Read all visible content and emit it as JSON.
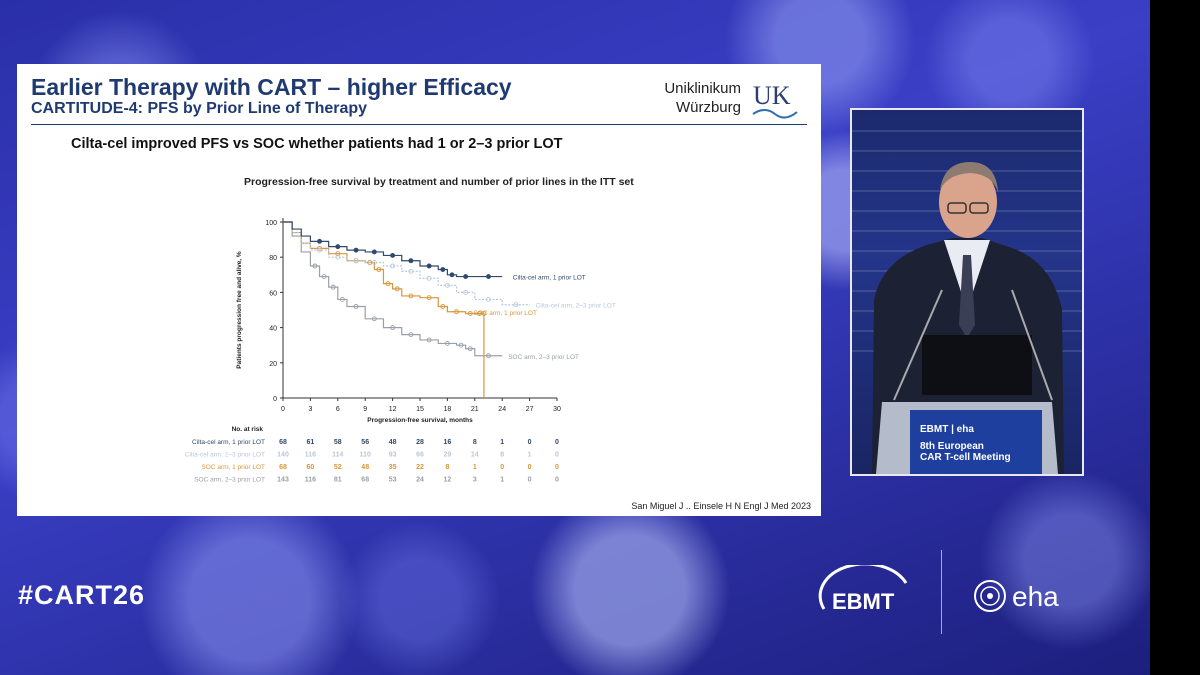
{
  "slide": {
    "title": "Earlier Therapy with CART – higher Efficacy",
    "subtitle": "CARTITUDE-4: PFS by Prior Line of Therapy",
    "logo_line1": "Uniklinikum",
    "logo_line2": "Würzburg",
    "logo_mark": "UK",
    "headline": "Cilta-cel improved PFS vs SOC whether patients had 1 or 2–3 prior LOT",
    "citation": "San Miguel J .. Einsele H N Engl J Med 2023"
  },
  "colors": {
    "cilta_1": "#2f4a6e",
    "cilta_23": "#b8c8de",
    "soc_1": "#d9963a",
    "soc_23": "#9aa0a8",
    "slide_title": "#1f3a72"
  },
  "chart_data": {
    "type": "line",
    "title": "Progression-free survival by treatment and number of prior lines in the ITT set",
    "xlabel": "Progression-free survival, months",
    "ylabel": "Patients progression free and alive, %",
    "xlim": [
      0,
      30
    ],
    "ylim": [
      0,
      100
    ],
    "xticks": [
      0,
      3,
      6,
      9,
      12,
      15,
      18,
      21,
      24,
      27,
      30
    ],
    "yticks": [
      0,
      20,
      40,
      60,
      80,
      100
    ],
    "series": [
      {
        "name": "Cilta-cel arm, 1 prior LOT",
        "color_key": "cilta_1",
        "x": [
          0,
          1,
          2,
          3,
          5,
          7,
          9,
          11,
          13,
          15,
          17,
          18,
          19,
          21,
          24
        ],
        "y": [
          100,
          96,
          92,
          89,
          86,
          84,
          83,
          81,
          78,
          75,
          73,
          70,
          69,
          69,
          69
        ]
      },
      {
        "name": "Cilta-cel arm, 2–3 prior LOT",
        "color_key": "cilta_23",
        "x": [
          0,
          1,
          2,
          3,
          5,
          7,
          9,
          11,
          13,
          15,
          17,
          19,
          21,
          24,
          27
        ],
        "y": [
          100,
          94,
          88,
          84,
          80,
          78,
          77,
          75,
          72,
          68,
          64,
          60,
          56,
          53,
          53
        ]
      },
      {
        "name": "SOC arm, 1 prior LOT",
        "color_key": "soc_1",
        "x": [
          0,
          1,
          2,
          3,
          5,
          7,
          9,
          10,
          11,
          12,
          13,
          15,
          17,
          18,
          20,
          21,
          22,
          22
        ],
        "y": [
          100,
          94,
          88,
          85,
          82,
          78,
          77,
          73,
          65,
          62,
          58,
          57,
          52,
          49,
          48,
          48,
          48,
          0
        ]
      },
      {
        "name": "SOC arm, 2–3 prior LOT",
        "color_key": "soc_23",
        "x": [
          0,
          1,
          2,
          3,
          4,
          5,
          6,
          7,
          9,
          11,
          13,
          15,
          17,
          19,
          20,
          21,
          24
        ],
        "y": [
          100,
          92,
          83,
          75,
          69,
          63,
          56,
          52,
          45,
          40,
          36,
          33,
          31,
          30,
          28,
          24,
          24
        ]
      }
    ],
    "risk_table": {
      "header": "No. at risk",
      "rows": [
        {
          "label": "Cilta-cel arm, 1 prior LOT",
          "color_key": "cilta_1",
          "values": [
            "68",
            "61",
            "58",
            "56",
            "48",
            "28",
            "16",
            "8",
            "1",
            "0",
            "0"
          ]
        },
        {
          "label": "Cilta-cel arm, 2–3 prior LOT",
          "color_key": "cilta_23",
          "values": [
            "140",
            "116",
            "114",
            "110",
            "93",
            "66",
            "29",
            "14",
            "8",
            "1",
            "0"
          ]
        },
        {
          "label": "SOC arm, 1 prior LOT",
          "color_key": "soc_1",
          "values": [
            "68",
            "60",
            "52",
            "48",
            "35",
            "22",
            "8",
            "1",
            "0",
            "0",
            "0"
          ]
        },
        {
          "label": "SOC arm, 2–3 prior LOT",
          "color_key": "soc_23",
          "values": [
            "143",
            "116",
            "81",
            "68",
            "53",
            "24",
            "12",
            "3",
            "1",
            "0",
            "0"
          ]
        }
      ]
    }
  },
  "speaker_panel": {
    "badge_line1": "EBMT | eha",
    "badge_line2": "8th European",
    "badge_line3": "CAR T-cell Meeting"
  },
  "footer": {
    "hashtag": "#CART26",
    "ebmt": "EBMT",
    "eha": "eha"
  }
}
